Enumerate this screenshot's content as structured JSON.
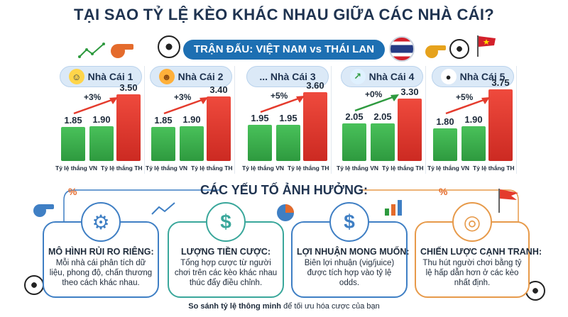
{
  "title": "TẠI SAO TỶ LỆ KÈO KHÁC NHAU GIỮA CÁC NHÀ CÁI?",
  "match": "TRẬN ĐẤU: VIỆT NAM vs THÁI LAN",
  "chart_data": [
    {
      "type": "bar",
      "title": "Nhà Cái 1",
      "categories": [
        "Tỷ lệ thắng VN",
        "",
        "Tỷ lệ thắng TH"
      ],
      "values": [
        1.85,
        1.9,
        3.5
      ],
      "labels": [
        "1.85",
        "1.90",
        "3.50"
      ],
      "annotation": "+3%"
    },
    {
      "type": "bar",
      "title": "Nhà Cái 2",
      "categories": [
        "Tỷ lệ thắng VN",
        "",
        "Tỷ lệ thắng TH"
      ],
      "values": [
        1.85,
        1.9,
        3.4
      ],
      "labels": [
        "1.85",
        "1.90",
        "3.40"
      ],
      "annotation": "+3%"
    },
    {
      "type": "bar",
      "title": "... Nhà Cái 3",
      "categories": [
        "Tỷ lệ thắng VN",
        "",
        "Tỷ lệ thắng TH"
      ],
      "values": [
        1.95,
        1.95,
        3.6
      ],
      "labels": [
        "1.95",
        "1.95",
        "3.60"
      ],
      "annotation": "+5%"
    },
    {
      "type": "bar",
      "title": "Nhà Cái 4",
      "categories": [
        "Tỷ lệ thắng VN",
        "",
        "Tỷ lệ thắng TH"
      ],
      "values": [
        2.05,
        2.05,
        3.3
      ],
      "labels": [
        "2.05",
        "2.05",
        "3.30"
      ],
      "annotation": "+0%"
    },
    {
      "type": "bar",
      "title": "Nhà Cái 5",
      "categories": [
        "Tỷ lệ thắng VN",
        "",
        "Tỷ lệ thắng TH"
      ],
      "values": [
        1.8,
        1.9,
        3.75
      ],
      "labels": [
        "1.80",
        "1.90",
        "3.75"
      ],
      "annotation": "+5%"
    }
  ],
  "card_icons": [
    "smiley-icon",
    "tiger-icon",
    "dots-icon",
    "growth-icon",
    "ball-icon"
  ],
  "xlabel_vn": "Tỷ lệ thắng VN",
  "xlabel_th": "Tỷ lệ thắng TH",
  "factors_title": "CÁC YẾU TỐ ẢNH HƯỞNG:",
  "factors": [
    {
      "title": "MÔ HÌNH RỦI RO RIÊNG:",
      "text": "Mỗi nhà cái phân tích dữ liệu, phong độ, chấn thương theo cách khác nhau.",
      "icon": "gears-icon",
      "color": "#3f7fc4"
    },
    {
      "title": "LƯỢNG TIỀN CƯỢC:",
      "text": "Tổng hợp cược từ người chơi trên các kèo khác nhau thúc đẩy điều chỉnh.",
      "icon": "money-bag-icon",
      "color": "#3aa79b"
    },
    {
      "title": "LỢI NHUẬN MONG MUỐN:",
      "text": "Biên lợi nhuận (vig/juice) được tích hợp vào tỷ lệ odds.",
      "icon": "profit-chart-icon",
      "color": "#3f7fc4"
    },
    {
      "title": "CHIẾN LƯỢC CẠNH TRANH:",
      "text": "Thu hút người chơi bằng tỷ lệ hấp dẫn hơn ở các kèo nhất định.",
      "icon": "target-icon",
      "color": "#e79a4a"
    }
  ],
  "footer_bold": "So sánh tỷ lệ thông minh",
  "footer_rest": " để tối ưu hóa cược của bạn",
  "colors": {
    "vn_bar": "#2e9a3f",
    "th_bar": "#cc2a22",
    "banner": "#1d6fb2"
  }
}
